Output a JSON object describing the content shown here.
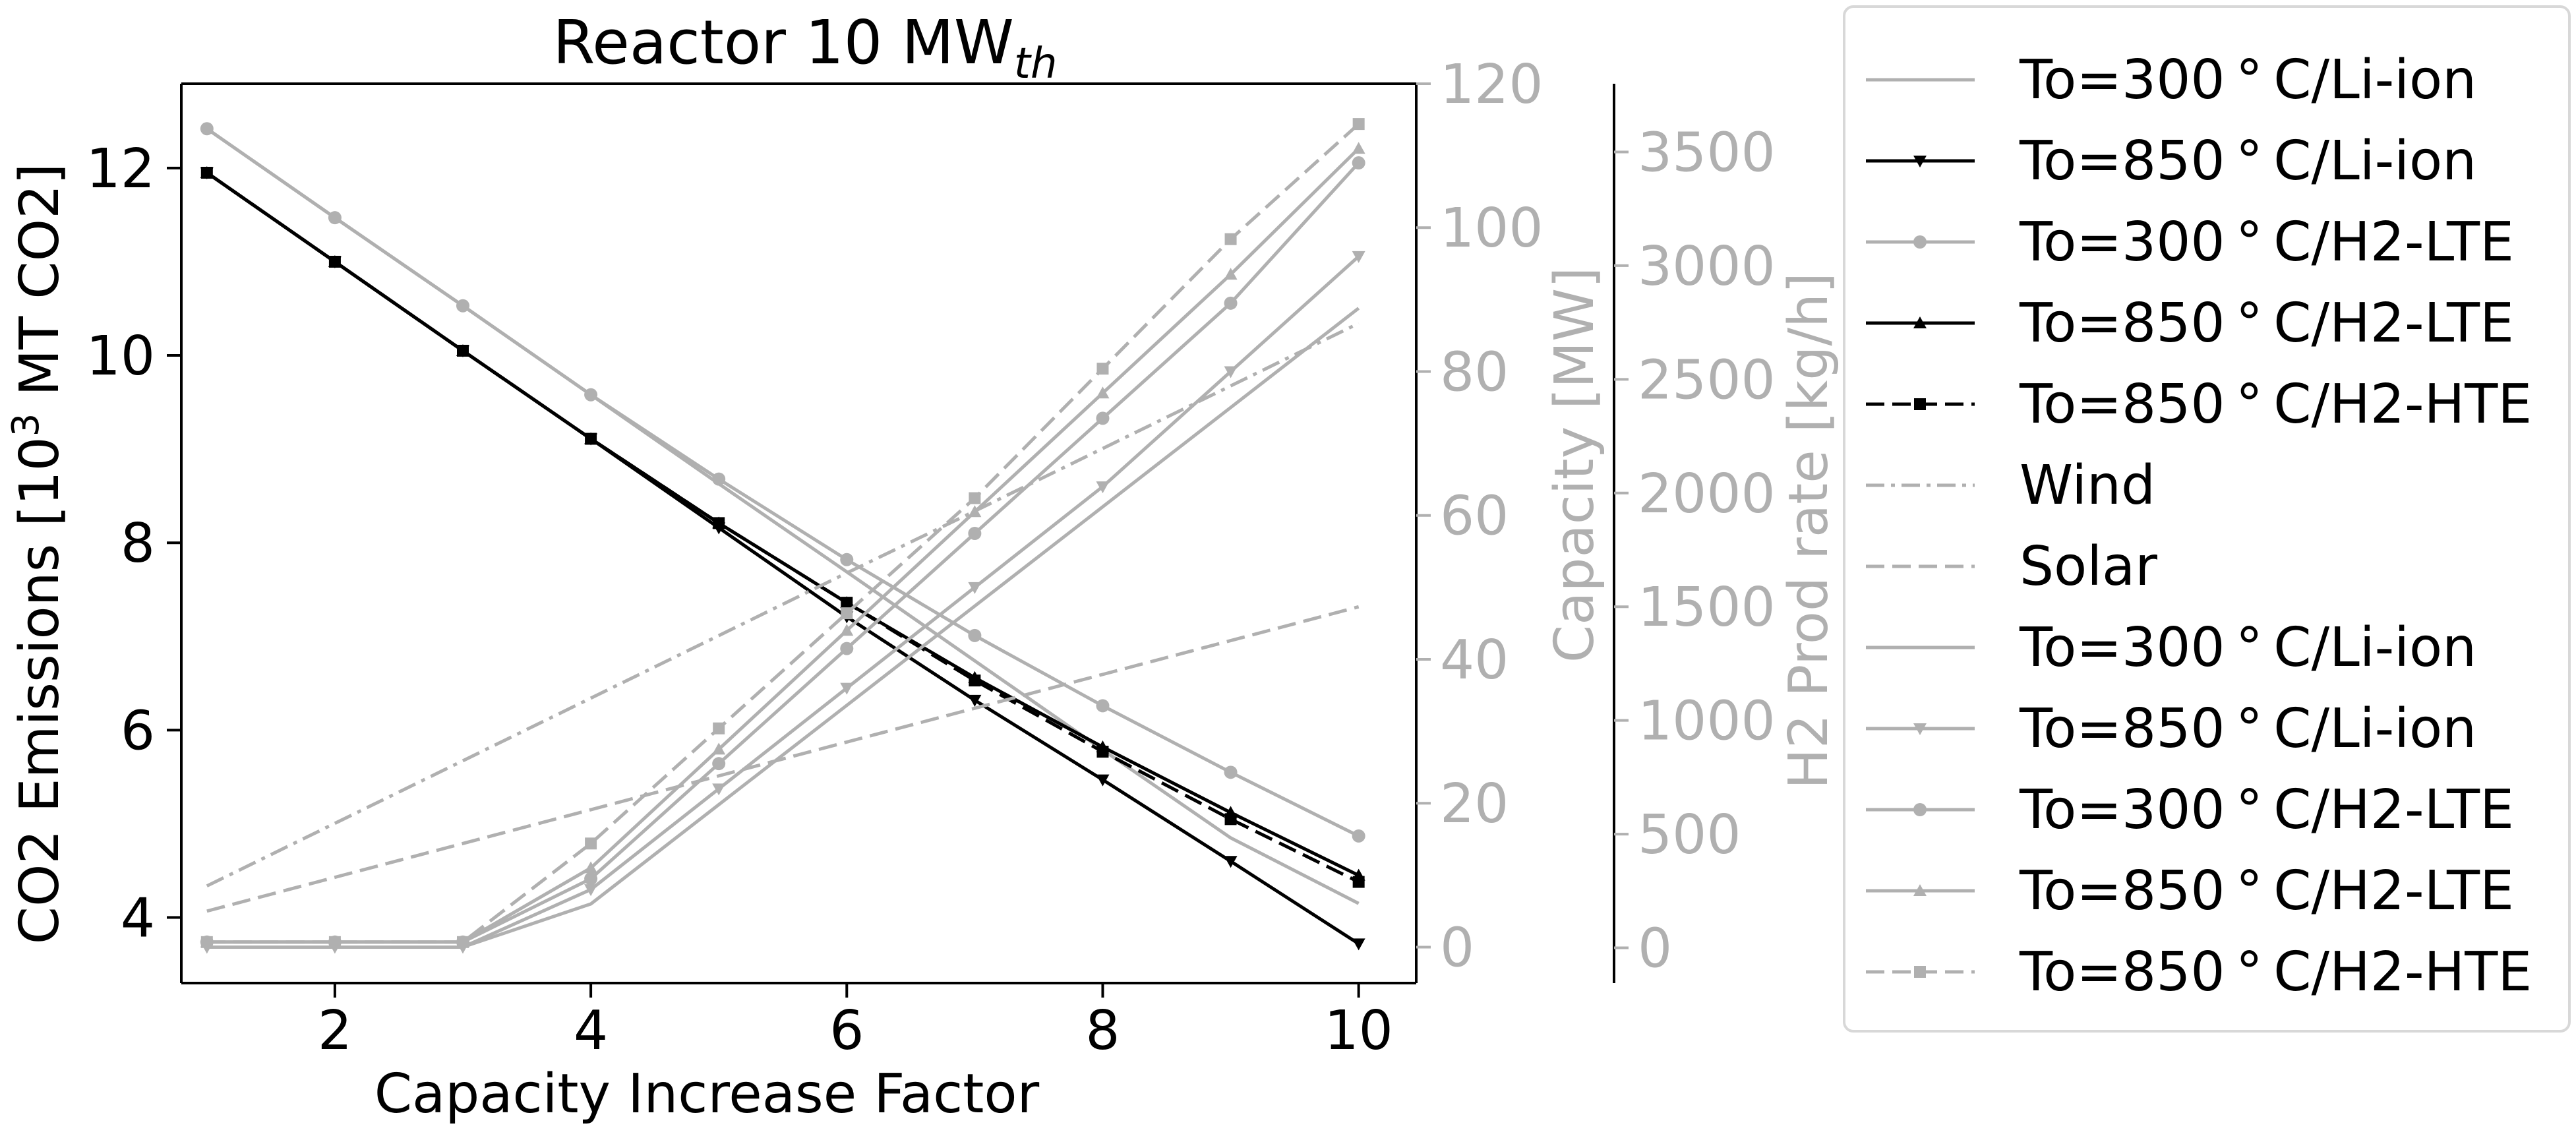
{
  "chart_data": {
    "type": "line",
    "title_main": "Reactor 10 MW",
    "title_sub": "th",
    "xlabel": "Capacity Increase Factor",
    "ylabel_main": "CO2 Emissions [10",
    "ylabel_sup": "3",
    "ylabel_rest": " MT CO2]",
    "ylabel_right1": "Capacity [MW]",
    "ylabel_right2": "H2 Prod rate [kg/h]",
    "xlim": [
      0.8,
      10.45
    ],
    "ylim_left": [
      3.3,
      12.9
    ],
    "ylim_right1": [
      -5,
      120
    ],
    "ylim_right2": [
      -155,
      3800
    ],
    "xticks": [
      2,
      4,
      6,
      8,
      10
    ],
    "yticks_left": [
      4,
      6,
      8,
      10,
      12
    ],
    "yticks_right1": [
      0,
      20,
      40,
      60,
      80,
      100,
      120
    ],
    "yticks_right2": [
      0,
      500,
      1000,
      1500,
      2000,
      2500,
      3000,
      3500
    ],
    "colors": {
      "black": "#000000",
      "gray": "#b0b0b0",
      "axis_gray": "#b0b0b0"
    },
    "x": [
      1,
      2,
      3,
      4,
      5,
      6,
      7,
      8,
      9,
      10
    ],
    "series": [
      {
        "name": "To=300$^\\circ$C/Li-ion",
        "axis": "left",
        "color": "#b0b0b0",
        "dash": "solid",
        "marker": "none",
        "values": [
          12.42,
          11.47,
          10.53,
          9.58,
          8.63,
          7.69,
          6.74,
          5.79,
          4.85,
          4.15
        ]
      },
      {
        "name": "To=850$^\\circ$C/Li-ion",
        "axis": "left",
        "color": "#000000",
        "dash": "solid",
        "marker": "tri_down",
        "values": [
          11.95,
          11.0,
          10.05,
          9.11,
          8.16,
          7.21,
          6.32,
          5.47,
          4.6,
          3.72
        ]
      },
      {
        "name": "To=300$^\\circ$C/H2-LTE",
        "axis": "left",
        "color": "#b0b0b0",
        "dash": "solid",
        "marker": "circle",
        "values": [
          12.42,
          11.47,
          10.53,
          9.58,
          8.68,
          7.82,
          7.01,
          6.26,
          5.55,
          4.87
        ]
      },
      {
        "name": "To=850$^\\circ$C/H2-LTE",
        "axis": "left",
        "color": "#000000",
        "dash": "solid",
        "marker": "tri_up",
        "values": [
          11.95,
          11.0,
          10.05,
          9.11,
          8.21,
          7.36,
          6.56,
          5.82,
          5.12,
          4.45
        ]
      },
      {
        "name": "To=850$^\\circ$C/H2-HTE",
        "axis": "left",
        "color": "#000000",
        "dash": "dashed",
        "marker": "square",
        "values": [
          11.95,
          11.0,
          10.05,
          9.11,
          8.21,
          7.36,
          6.53,
          5.77,
          5.05,
          4.38
        ]
      },
      {
        "name": "Wind",
        "axis": "right1",
        "color": "#b0b0b0",
        "dash": "dashdot",
        "marker": "none",
        "values": [
          8.5,
          17.2,
          25.9,
          34.6,
          43.3,
          52.0,
          60.6,
          69.3,
          78.0,
          86.7
        ]
      },
      {
        "name": "Solar",
        "axis": "right1",
        "color": "#b0b0b0",
        "dash": "dashed",
        "marker": "none",
        "values": [
          5.0,
          9.7,
          14.4,
          19.1,
          23.8,
          28.5,
          33.2,
          37.9,
          42.6,
          47.3
        ]
      },
      {
        "name": "To=300$^\\circ$C/Li-ion",
        "axis": "right1",
        "color": "#b0b0b0",
        "dash": "solid",
        "marker": "none",
        "values": [
          0,
          0,
          0,
          6.0,
          19.8,
          33.6,
          47.4,
          61.2,
          75.0,
          88.8
        ]
      },
      {
        "name": "To=850$^\\circ$C/Li-ion",
        "axis": "right1",
        "color": "#b0b0b0",
        "dash": "solid",
        "marker": "tri_down",
        "values": [
          0,
          0,
          0,
          8.0,
          22.0,
          36.0,
          50.0,
          64.0,
          80.0,
          96.0
        ]
      },
      {
        "name": "To=300$^\\circ$C/H2-LTE",
        "axis": "right1",
        "color": "#b0b0b0",
        "dash": "solid",
        "marker": "circle",
        "values": [
          0.7,
          0.7,
          0.7,
          9.5,
          25.5,
          41.5,
          57.5,
          73.5,
          89.5,
          109.0
        ]
      },
      {
        "name": "To=850$^\\circ$C/H2-LTE",
        "axis": "right1",
        "color": "#b0b0b0",
        "dash": "solid",
        "marker": "tri_up",
        "values": [
          0.7,
          0.7,
          0.7,
          11.0,
          27.5,
          44.0,
          60.5,
          77.0,
          93.5,
          111.0
        ]
      },
      {
        "name": "To=850$^\\circ$C/H2-HTE",
        "axis": "right1",
        "color": "#b0b0b0",
        "dash": "dashed",
        "marker": "square",
        "values": [
          0.7,
          0.7,
          0.7,
          14.4,
          30.4,
          46.4,
          62.4,
          80.4,
          98.4,
          114.4
        ]
      }
    ],
    "legend_labels": [
      "To=300$^\\circ$C/Li-ion",
      "To=850$^\\circ$C/Li-ion",
      "To=300$^\\circ$C/H2-LTE",
      "To=850$^\\circ$C/H2-LTE",
      "To=850$^\\circ$C/H2-HTE",
      "Wind",
      "Solar",
      "To=300$^\\circ$C/Li-ion",
      "To=850$^\\circ$C/Li-ion",
      "To=300$^\\circ$C/H2-LTE",
      "To=850$^\\circ$C/H2-LTE",
      "To=850$^\\circ$C/H2-HTE"
    ],
    "legend_display": [
      "To=300 ° C/Li-ion",
      "To=850 ° C/Li-ion",
      "To=300 ° C/H2-LTE",
      "To=850 ° C/H2-LTE",
      "To=850 ° C/H2-HTE",
      "Wind",
      "Solar",
      "To=300 ° C/Li-ion",
      "To=850 ° C/Li-ion",
      "To=300 ° C/H2-LTE",
      "To=850 ° C/H2-LTE",
      "To=850 ° C/H2-HTE"
    ],
    "grid": false,
    "legend_position": "outside-right"
  }
}
